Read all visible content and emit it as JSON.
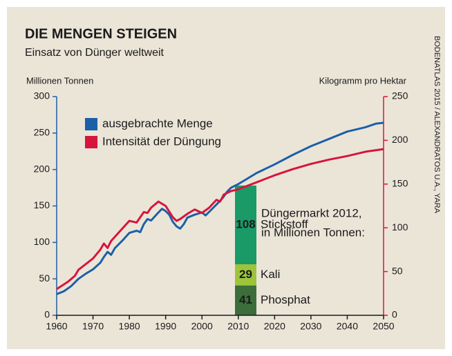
{
  "chart_data": {
    "type": "line",
    "title": "DIE MENGEN STEIGEN",
    "subtitle": "Einsatz von Dünger weltweit",
    "y_label": "Millionen Tonnen",
    "y2_label": "Kilogramm pro Hektar",
    "source": "BODENATLAS 2015 / ALEXANDRATOS U.A., YARA",
    "xlim": [
      1960,
      2050
    ],
    "xticks": [
      1960,
      1970,
      1980,
      1990,
      2000,
      2010,
      2020,
      2030,
      2040,
      2050
    ],
    "ylim": [
      0,
      300
    ],
    "yticks": [
      0,
      50,
      100,
      150,
      200,
      250,
      300
    ],
    "y2lim": [
      0,
      250
    ],
    "y2ticks": [
      0,
      50,
      100,
      150,
      200,
      250
    ],
    "legend": "upper left",
    "series": [
      {
        "name": "ausgebrachte Menge",
        "color": "#1c5fa8",
        "x": [
          1960,
          1962,
          1964,
          1966,
          1968,
          1970,
          1972,
          1973,
          1974,
          1975,
          1976,
          1978,
          1980,
          1982,
          1983,
          1984,
          1985,
          1986,
          1988,
          1989,
          1990,
          1991,
          1992,
          1993,
          1994,
          1995,
          1996,
          1998,
          2000,
          2001,
          2002,
          2004,
          2005,
          2006,
          2007,
          2008,
          2010,
          2012,
          2015,
          2020,
          2025,
          2030,
          2035,
          2040,
          2045,
          2048,
          2050
        ],
        "values": [
          29,
          33,
          40,
          50,
          57,
          63,
          72,
          80,
          87,
          83,
          92,
          102,
          113,
          116,
          114,
          125,
          132,
          130,
          141,
          146,
          143,
          138,
          128,
          122,
          119,
          125,
          134,
          138,
          141,
          137,
          142,
          152,
          157,
          163,
          170,
          175,
          180,
          186,
          195,
          207,
          220,
          232,
          242,
          252,
          258,
          263,
          264
        ]
      },
      {
        "name": "Intensität der Düngung",
        "color": "#d7143c",
        "axis": "y2",
        "x": [
          1960,
          1963,
          1965,
          1966,
          1970,
          1972,
          1973,
          1974,
          1975,
          1980,
          1982,
          1984,
          1985,
          1986,
          1988,
          1990,
          1992,
          1993,
          1994,
          1996,
          1998,
          2000,
          2002,
          2004,
          2005,
          2006,
          2008,
          2010,
          2015,
          2020,
          2025,
          2030,
          2035,
          2040,
          2045,
          2050
        ],
        "values": [
          30,
          38,
          45,
          52,
          65,
          75,
          82,
          77,
          85,
          108,
          106,
          118,
          117,
          123,
          130,
          125,
          112,
          108,
          110,
          116,
          121,
          117,
          123,
          132,
          130,
          138,
          142,
          144,
          152,
          160,
          167,
          173,
          178,
          182,
          187,
          190
        ]
      }
    ],
    "stack": {
      "title": "Düngermarkt 2012,",
      "subtitle": "in Millionen Tonnen:",
      "segments": [
        {
          "name": "Phosphat",
          "value": 41,
          "color": "#3b6e3a"
        },
        {
          "name": "Kali",
          "value": 29,
          "color": "#9dc43a"
        },
        {
          "name": "Stickstoff",
          "value": 108,
          "color": "#1a9a67"
        }
      ]
    }
  }
}
